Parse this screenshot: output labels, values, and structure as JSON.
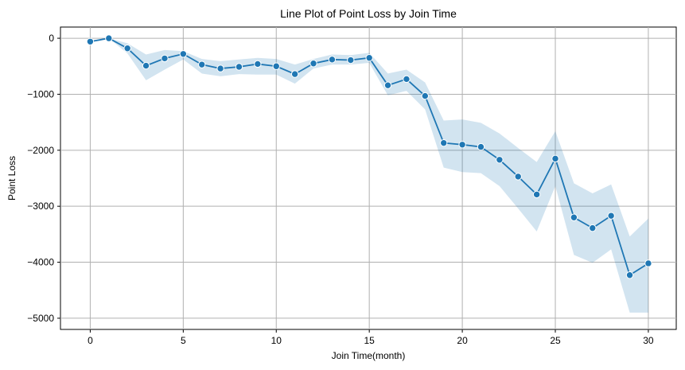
{
  "chart_data": {
    "type": "line",
    "title": "Line Plot of Point Loss by Join Time",
    "xlabel": "Join Time(month)",
    "ylabel": "Point Loss",
    "xlim": [
      -1.6,
      31.5
    ],
    "ylim": [
      -5200,
      200
    ],
    "xticks": [
      0,
      5,
      10,
      15,
      20,
      25,
      30
    ],
    "yticks": [
      0,
      -1000,
      -2000,
      -3000,
      -4000,
      -5000
    ],
    "xtick_labels": [
      "0",
      "5",
      "10",
      "15",
      "20",
      "25",
      "30"
    ],
    "ytick_labels": [
      "0",
      "−1000",
      "−2000",
      "−3000",
      "−4000",
      "−5000"
    ],
    "grid": true,
    "line_color": "#1f77b4",
    "band_color": "#1f77b4",
    "x": [
      0,
      1,
      2,
      3,
      4,
      5,
      6,
      7,
      8,
      9,
      10,
      11,
      12,
      13,
      14,
      15,
      16,
      17,
      18,
      19,
      20,
      21,
      22,
      23,
      24,
      25,
      26,
      27,
      28,
      29,
      30
    ],
    "y": [
      -60,
      0,
      -180,
      -490,
      -360,
      -280,
      -470,
      -540,
      -510,
      -460,
      -500,
      -640,
      -450,
      -380,
      -390,
      -350,
      -840,
      -730,
      -1030,
      -1870,
      -1900,
      -1940,
      -2170,
      -2470,
      -2790,
      -2150,
      -3200,
      -3390,
      -3170,
      -4230,
      -4020
    ],
    "ci_upper": [
      -60,
      0,
      -90,
      -290,
      -210,
      -230,
      -370,
      -410,
      -380,
      -350,
      -370,
      -470,
      -370,
      -290,
      -300,
      -260,
      -630,
      -560,
      -790,
      -1470,
      -1450,
      -1510,
      -1700,
      -1960,
      -2210,
      -1660,
      -2590,
      -2770,
      -2610,
      -3540,
      -3220
    ],
    "ci_lower": [
      -60,
      0,
      -270,
      -750,
      -560,
      -380,
      -630,
      -680,
      -640,
      -650,
      -650,
      -810,
      -540,
      -470,
      -470,
      -440,
      -1020,
      -940,
      -1270,
      -2310,
      -2390,
      -2410,
      -2640,
      -3040,
      -3450,
      -2640,
      -3870,
      -4010,
      -3770,
      -4900,
      -4900
    ]
  }
}
